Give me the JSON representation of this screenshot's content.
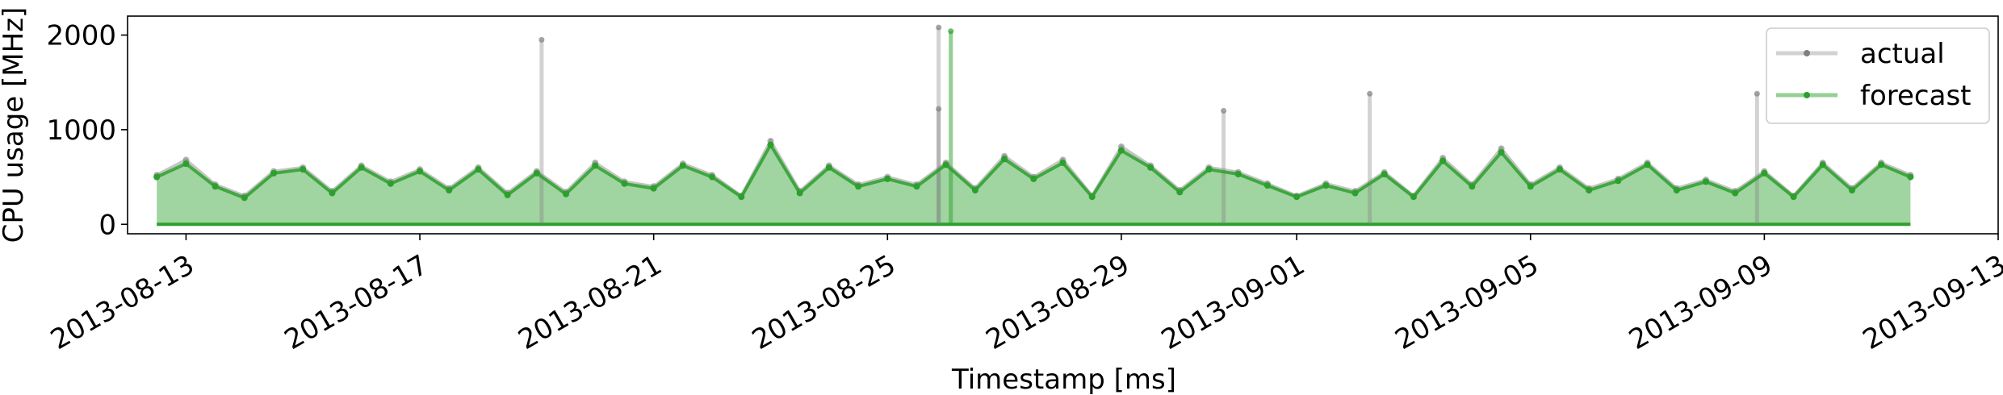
{
  "chart_data": {
    "type": "line",
    "title": "",
    "xlabel": "Timestamp [ms]",
    "ylabel": "CPU usage [MHz]",
    "x_tick_labels": [
      "2013-08-13",
      "2013-08-17",
      "2013-08-21",
      "2013-08-25",
      "2013-08-29",
      "2013-09-01",
      "2013-09-05",
      "2013-09-09",
      "2013-09-13"
    ],
    "y_ticks": [
      0,
      1000,
      2000
    ],
    "xlim": [
      "2013-08-12",
      "2013-09-13"
    ],
    "ylim": [
      -100,
      2200
    ],
    "legend": {
      "position": "top-right"
    },
    "grid": false,
    "series": [
      {
        "name": "actual",
        "color": "#7f7f7f",
        "x": [
          "2013-08-12T12:00",
          "2013-08-13T00:00",
          "2013-08-13T12:00",
          "2013-08-14T00:00",
          "2013-08-14T12:00",
          "2013-08-15T00:00",
          "2013-08-15T12:00",
          "2013-08-16T00:00",
          "2013-08-16T12:00",
          "2013-08-17T00:00",
          "2013-08-17T12:00",
          "2013-08-18T00:00",
          "2013-08-18T12:00",
          "2013-08-19T00:00",
          "2013-08-19T12:00",
          "2013-08-20T00:00",
          "2013-08-20T12:00",
          "2013-08-21T00:00",
          "2013-08-21T12:00",
          "2013-08-22T00:00",
          "2013-08-22T12:00",
          "2013-08-23T00:00",
          "2013-08-23T12:00",
          "2013-08-24T00:00",
          "2013-08-24T12:00",
          "2013-08-25T00:00",
          "2013-08-25T12:00",
          "2013-08-26T00:00",
          "2013-08-26T12:00",
          "2013-08-27T00:00",
          "2013-08-27T12:00",
          "2013-08-28T00:00",
          "2013-08-28T12:00",
          "2013-08-29T00:00",
          "2013-08-29T12:00",
          "2013-08-30T00:00",
          "2013-08-30T12:00",
          "2013-08-31T00:00",
          "2013-08-31T12:00",
          "2013-09-01T00:00",
          "2013-09-01T12:00",
          "2013-09-02T00:00",
          "2013-09-02T12:00",
          "2013-09-03T00:00",
          "2013-09-03T12:00",
          "2013-09-04T00:00",
          "2013-09-04T12:00",
          "2013-09-05T00:00",
          "2013-09-05T12:00",
          "2013-09-06T00:00",
          "2013-09-06T12:00",
          "2013-09-07T00:00",
          "2013-09-07T12:00",
          "2013-09-08T00:00",
          "2013-09-08T12:00",
          "2013-09-09T00:00",
          "2013-09-09T12:00",
          "2013-09-10T00:00",
          "2013-09-10T12:00",
          "2013-09-11T00:00",
          "2013-09-11T12:00"
        ],
        "values": [
          520,
          680,
          420,
          300,
          560,
          600,
          350,
          620,
          450,
          580,
          380,
          600,
          330,
          560,
          340,
          650,
          450,
          400,
          640,
          520,
          300,
          880,
          350,
          620,
          420,
          500,
          420,
          650,
          380,
          720,
          500,
          680,
          300,
          820,
          620,
          360,
          600,
          550,
          430,
          300,
          430,
          350,
          550,
          300,
          700,
          420,
          800,
          420,
          600,
          380,
          480,
          650,
          380,
          470,
          350,
          560,
          300,
          650,
          380,
          650,
          520
        ]
      },
      {
        "name": "forecast",
        "color": "#2ca02c",
        "x": [
          "2013-08-12T12:00",
          "2013-08-13T00:00",
          "2013-08-13T12:00",
          "2013-08-14T00:00",
          "2013-08-14T12:00",
          "2013-08-15T00:00",
          "2013-08-15T12:00",
          "2013-08-16T00:00",
          "2013-08-16T12:00",
          "2013-08-17T00:00",
          "2013-08-17T12:00",
          "2013-08-18T00:00",
          "2013-08-18T12:00",
          "2013-08-19T00:00",
          "2013-08-19T12:00",
          "2013-08-20T00:00",
          "2013-08-20T12:00",
          "2013-08-21T00:00",
          "2013-08-21T12:00",
          "2013-08-22T00:00",
          "2013-08-22T12:00",
          "2013-08-23T00:00",
          "2013-08-23T12:00",
          "2013-08-24T00:00",
          "2013-08-24T12:00",
          "2013-08-25T00:00",
          "2013-08-25T12:00",
          "2013-08-26T00:00",
          "2013-08-26T12:00",
          "2013-08-27T00:00",
          "2013-08-27T12:00",
          "2013-08-28T00:00",
          "2013-08-28T12:00",
          "2013-08-29T00:00",
          "2013-08-29T12:00",
          "2013-08-30T00:00",
          "2013-08-30T12:00",
          "2013-08-31T00:00",
          "2013-08-31T12:00",
          "2013-09-01T00:00",
          "2013-09-01T12:00",
          "2013-09-02T00:00",
          "2013-09-02T12:00",
          "2013-09-03T00:00",
          "2013-09-03T12:00",
          "2013-09-04T00:00",
          "2013-09-04T12:00",
          "2013-09-05T00:00",
          "2013-09-05T12:00",
          "2013-09-06T00:00",
          "2013-09-06T12:00",
          "2013-09-07T00:00",
          "2013-09-07T12:00",
          "2013-09-08T00:00",
          "2013-09-08T12:00",
          "2013-09-09T00:00",
          "2013-09-09T12:00",
          "2013-09-10T00:00",
          "2013-09-10T12:00",
          "2013-09-11T00:00",
          "2013-09-11T12:00"
        ],
        "values": [
          500,
          640,
          400,
          280,
          540,
          580,
          330,
          600,
          430,
          560,
          360,
          580,
          310,
          540,
          320,
          620,
          430,
          380,
          620,
          500,
          290,
          840,
          330,
          600,
          400,
          480,
          400,
          630,
          360,
          690,
          480,
          650,
          290,
          780,
          600,
          340,
          580,
          530,
          410,
          290,
          410,
          330,
          530,
          290,
          670,
          400,
          760,
          400,
          580,
          360,
          460,
          630,
          360,
          450,
          330,
          540,
          290,
          630,
          360,
          630,
          500
        ]
      }
    ],
    "annotations": [
      {
        "series": "actual",
        "x": "2013-08-19T02:00",
        "y": 1950
      },
      {
        "series": "actual",
        "x": "2013-08-25T21:00",
        "y": 2080
      },
      {
        "series": "actual",
        "x": "2013-08-25T21:00",
        "y": 1220
      },
      {
        "series": "forecast",
        "x": "2013-08-26T02:00",
        "y": 2040
      },
      {
        "series": "actual",
        "x": "2013-08-30T18:00",
        "y": 1200
      },
      {
        "series": "actual",
        "x": "2013-09-02T06:00",
        "y": 1380
      },
      {
        "series": "actual",
        "x": "2013-09-08T21:00",
        "y": 1380
      }
    ]
  }
}
